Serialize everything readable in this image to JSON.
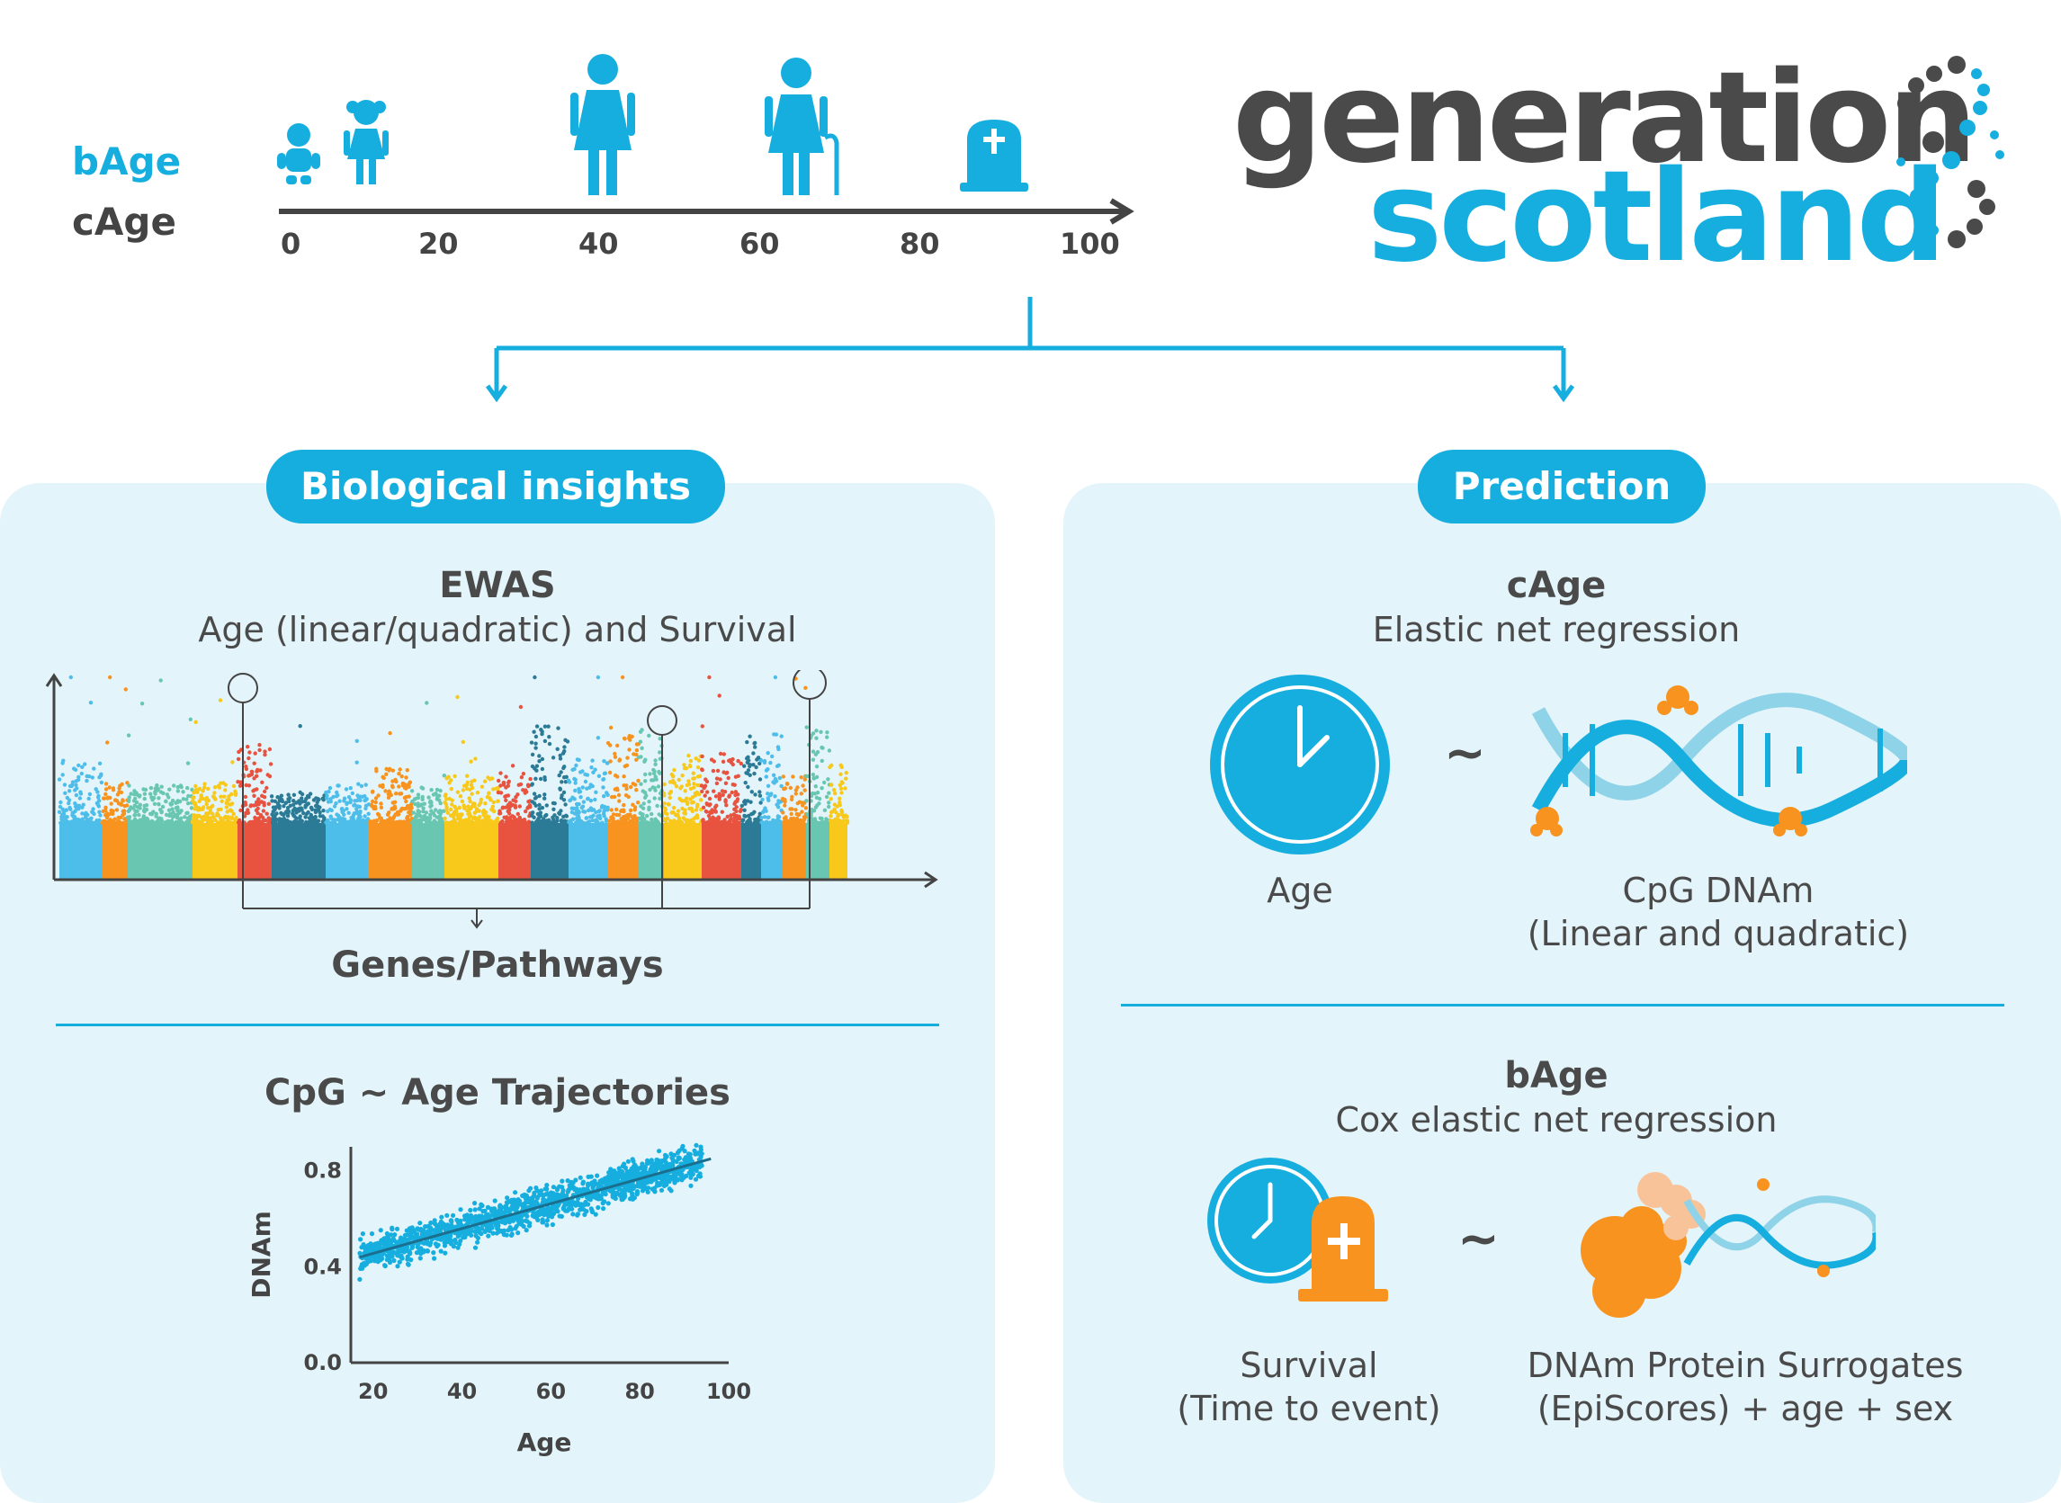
{
  "timeline": {
    "label_b": "bAge",
    "label_c": "cAge",
    "ticks": [
      "0",
      "20",
      "40",
      "60",
      "80",
      "100"
    ]
  },
  "logo": {
    "line1": "generation",
    "line2": "scotland"
  },
  "left": {
    "pill": "Biological insights",
    "ewas_title": "EWAS",
    "ewas_sub": "Age (linear/quadratic) and Survival",
    "genes": "Genes/Pathways",
    "traj_title": "CpG ~ Age Trajectories"
  },
  "right": {
    "pill": "Prediction",
    "cage_title": "cAge",
    "cage_sub": "Elastic net regression",
    "tilde": "~",
    "age_caption": "Age",
    "cpg_caption1": "CpG DNAm",
    "cpg_caption2": "(Linear and quadratic)",
    "bage_title": "bAge",
    "bage_sub": "Cox elastic net regression",
    "surv_caption1": "Survival",
    "surv_caption2": "(Time to event)",
    "prot_caption1": "DNAm Protein Surrogates",
    "prot_caption2": "(EpiScores) + age + sex"
  },
  "chart_data": {
    "type": "scatter",
    "title": "",
    "xlabel": "Age",
    "ylabel": "DNAm",
    "xlim": [
      15,
      100
    ],
    "ylim": [
      0.0,
      0.9
    ],
    "x_ticks": [
      "20",
      "40",
      "60",
      "80",
      "100"
    ],
    "y_ticks": [
      "0.0",
      "0.4",
      "0.8"
    ],
    "trend": {
      "x": [
        17,
        96
      ],
      "y": [
        0.44,
        0.85
      ]
    },
    "color": "#16aedf"
  },
  "colors": {
    "accent": "#16aedf",
    "dark": "#4a4a4a",
    "orange": "#f7931e",
    "panel": "#e3f4fa"
  }
}
